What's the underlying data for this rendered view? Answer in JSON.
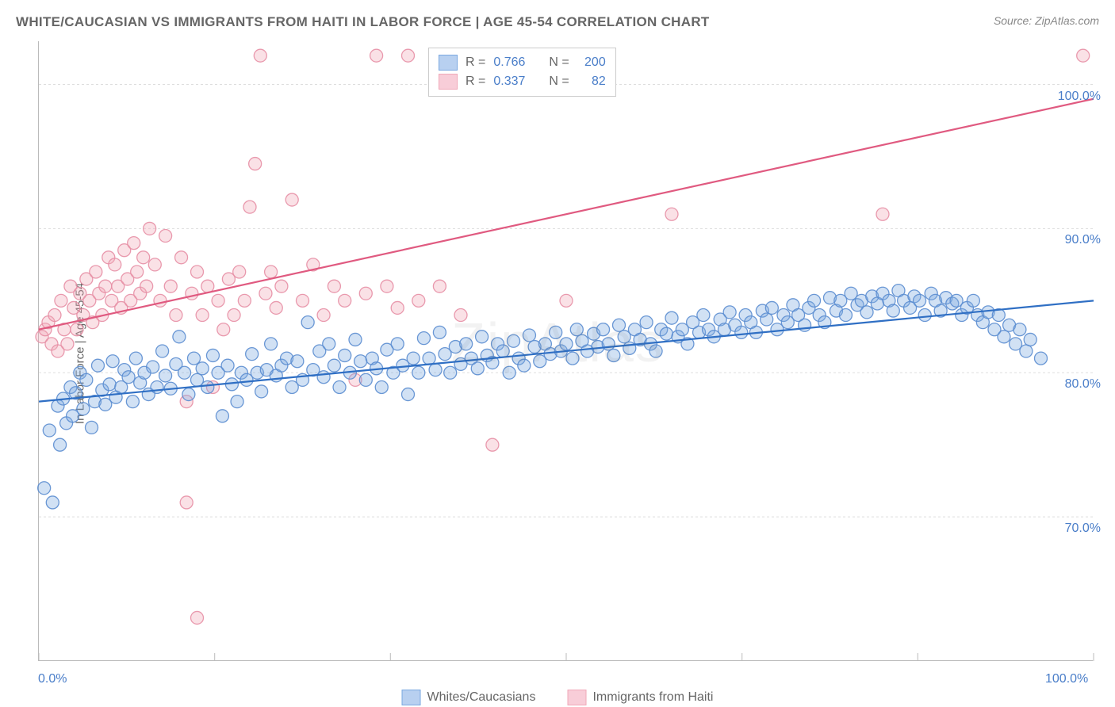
{
  "title": "WHITE/CAUCASIAN VS IMMIGRANTS FROM HAITI IN LABOR FORCE | AGE 45-54 CORRELATION CHART",
  "source": "Source: ZipAtlas.com",
  "watermark": "ZipAtlas",
  "ylabel": "In Labor Force | Age 45-54",
  "chart": {
    "type": "scatter",
    "background_color": "#ffffff",
    "grid_color": "#dddddd",
    "axis_color": "#bbbbbb",
    "text_color": "#666666",
    "value_color": "#4a7ec9",
    "xlim": [
      0,
      100
    ],
    "ylim": [
      60,
      103
    ],
    "xtick_positions": [
      0,
      16.67,
      33.33,
      50,
      66.67,
      83.33,
      100
    ],
    "xtick_labels_shown": {
      "0": "0.0%",
      "100": "100.0%"
    },
    "ytick_positions": [
      70,
      80,
      90,
      100
    ],
    "ytick_labels": [
      "70.0%",
      "80.0%",
      "90.0%",
      "100.0%"
    ],
    "marker_radius": 8,
    "marker_fill_opacity": 0.35,
    "marker_stroke_opacity": 0.9,
    "series": [
      {
        "name": "Whites/Caucasians",
        "color": "#7aa8e0",
        "stroke": "#5b8dd0",
        "line_color": "#2f6fc4",
        "R": "0.766",
        "N": "200",
        "trend": {
          "x1": 0,
          "y1": 78.0,
          "x2": 100,
          "y2": 85.0
        },
        "points": [
          [
            0.5,
            72.0
          ],
          [
            1.0,
            76.0
          ],
          [
            1.3,
            71.0
          ],
          [
            1.8,
            77.7
          ],
          [
            2.0,
            75.0
          ],
          [
            2.3,
            78.2
          ],
          [
            2.6,
            76.5
          ],
          [
            3.0,
            79.0
          ],
          [
            3.2,
            77.0
          ],
          [
            3.5,
            78.6
          ],
          [
            3.9,
            80.0
          ],
          [
            4.2,
            77.5
          ],
          [
            4.5,
            79.5
          ],
          [
            5.0,
            76.2
          ],
          [
            5.3,
            78.0
          ],
          [
            5.6,
            80.5
          ],
          [
            6.0,
            78.8
          ],
          [
            6.3,
            77.8
          ],
          [
            6.7,
            79.2
          ],
          [
            7.0,
            80.8
          ],
          [
            7.3,
            78.3
          ],
          [
            7.8,
            79.0
          ],
          [
            8.1,
            80.2
          ],
          [
            8.5,
            79.7
          ],
          [
            8.9,
            78.0
          ],
          [
            9.2,
            81.0
          ],
          [
            9.6,
            79.3
          ],
          [
            10.0,
            80.0
          ],
          [
            10.4,
            78.5
          ],
          [
            10.8,
            80.4
          ],
          [
            11.2,
            79.0
          ],
          [
            11.7,
            81.5
          ],
          [
            12.0,
            79.8
          ],
          [
            12.5,
            78.9
          ],
          [
            13.0,
            80.6
          ],
          [
            13.3,
            82.5
          ],
          [
            13.8,
            80.0
          ],
          [
            14.2,
            78.5
          ],
          [
            14.7,
            81.0
          ],
          [
            15.0,
            79.5
          ],
          [
            15.5,
            80.3
          ],
          [
            16.0,
            79.0
          ],
          [
            16.5,
            81.2
          ],
          [
            17.0,
            80.0
          ],
          [
            17.4,
            77.0
          ],
          [
            17.9,
            80.5
          ],
          [
            18.3,
            79.2
          ],
          [
            18.8,
            78.0
          ],
          [
            19.2,
            80.0
          ],
          [
            19.7,
            79.5
          ],
          [
            20.2,
            81.3
          ],
          [
            20.7,
            80.0
          ],
          [
            21.1,
            78.7
          ],
          [
            21.6,
            80.2
          ],
          [
            22.0,
            82.0
          ],
          [
            22.5,
            79.8
          ],
          [
            23.0,
            80.5
          ],
          [
            23.5,
            81.0
          ],
          [
            24.0,
            79.0
          ],
          [
            24.5,
            80.8
          ],
          [
            25.0,
            79.5
          ],
          [
            25.5,
            83.5
          ],
          [
            26.0,
            80.2
          ],
          [
            26.6,
            81.5
          ],
          [
            27.0,
            79.7
          ],
          [
            27.5,
            82.0
          ],
          [
            28.0,
            80.5
          ],
          [
            28.5,
            79.0
          ],
          [
            29.0,
            81.2
          ],
          [
            29.5,
            80.0
          ],
          [
            30.0,
            82.3
          ],
          [
            30.5,
            80.8
          ],
          [
            31.0,
            79.5
          ],
          [
            31.6,
            81.0
          ],
          [
            32.0,
            80.3
          ],
          [
            32.5,
            79.0
          ],
          [
            33.0,
            81.6
          ],
          [
            33.6,
            80.0
          ],
          [
            34.0,
            82.0
          ],
          [
            34.5,
            80.5
          ],
          [
            35.0,
            78.5
          ],
          [
            35.5,
            81.0
          ],
          [
            36.0,
            80.0
          ],
          [
            36.5,
            82.4
          ],
          [
            37.0,
            81.0
          ],
          [
            37.6,
            80.2
          ],
          [
            38.0,
            82.8
          ],
          [
            38.5,
            81.3
          ],
          [
            39.0,
            80.0
          ],
          [
            39.5,
            81.8
          ],
          [
            40.0,
            80.6
          ],
          [
            40.5,
            82.0
          ],
          [
            41.0,
            81.0
          ],
          [
            41.6,
            80.3
          ],
          [
            42.0,
            82.5
          ],
          [
            42.5,
            81.2
          ],
          [
            43.0,
            80.7
          ],
          [
            43.5,
            82.0
          ],
          [
            44.0,
            81.5
          ],
          [
            44.6,
            80.0
          ],
          [
            45.0,
            82.2
          ],
          [
            45.5,
            81.0
          ],
          [
            46.0,
            80.5
          ],
          [
            46.5,
            82.6
          ],
          [
            47.0,
            81.8
          ],
          [
            47.5,
            80.8
          ],
          [
            48.0,
            82.0
          ],
          [
            48.5,
            81.3
          ],
          [
            49.0,
            82.8
          ],
          [
            49.5,
            81.5
          ],
          [
            50.0,
            82.0
          ],
          [
            50.6,
            81.0
          ],
          [
            51.0,
            83.0
          ],
          [
            51.5,
            82.2
          ],
          [
            52.0,
            81.5
          ],
          [
            52.6,
            82.7
          ],
          [
            53.0,
            81.8
          ],
          [
            53.5,
            83.0
          ],
          [
            54.0,
            82.0
          ],
          [
            54.5,
            81.2
          ],
          [
            55.0,
            83.3
          ],
          [
            55.5,
            82.5
          ],
          [
            56.0,
            81.7
          ],
          [
            56.5,
            83.0
          ],
          [
            57.0,
            82.3
          ],
          [
            57.6,
            83.5
          ],
          [
            58.0,
            82.0
          ],
          [
            58.5,
            81.5
          ],
          [
            59.0,
            83.0
          ],
          [
            59.5,
            82.7
          ],
          [
            60.0,
            83.8
          ],
          [
            60.6,
            82.5
          ],
          [
            61.0,
            83.0
          ],
          [
            61.5,
            82.0
          ],
          [
            62.0,
            83.5
          ],
          [
            62.6,
            82.8
          ],
          [
            63.0,
            84.0
          ],
          [
            63.5,
            83.0
          ],
          [
            64.0,
            82.5
          ],
          [
            64.6,
            83.7
          ],
          [
            65.0,
            83.0
          ],
          [
            65.5,
            84.2
          ],
          [
            66.0,
            83.3
          ],
          [
            66.6,
            82.8
          ],
          [
            67.0,
            84.0
          ],
          [
            67.5,
            83.5
          ],
          [
            68.0,
            82.8
          ],
          [
            68.6,
            84.3
          ],
          [
            69.0,
            83.7
          ],
          [
            69.5,
            84.5
          ],
          [
            70.0,
            83.0
          ],
          [
            70.6,
            84.0
          ],
          [
            71.0,
            83.5
          ],
          [
            71.5,
            84.7
          ],
          [
            72.0,
            84.0
          ],
          [
            72.6,
            83.3
          ],
          [
            73.0,
            84.5
          ],
          [
            73.5,
            85.0
          ],
          [
            74.0,
            84.0
          ],
          [
            74.5,
            83.5
          ],
          [
            75.0,
            85.2
          ],
          [
            75.6,
            84.3
          ],
          [
            76.0,
            85.0
          ],
          [
            76.5,
            84.0
          ],
          [
            77.0,
            85.5
          ],
          [
            77.6,
            84.7
          ],
          [
            78.0,
            85.0
          ],
          [
            78.5,
            84.2
          ],
          [
            79.0,
            85.3
          ],
          [
            79.5,
            84.8
          ],
          [
            80.0,
            85.5
          ],
          [
            80.6,
            85.0
          ],
          [
            81.0,
            84.3
          ],
          [
            81.5,
            85.7
          ],
          [
            82.0,
            85.0
          ],
          [
            82.6,
            84.5
          ],
          [
            83.0,
            85.3
          ],
          [
            83.5,
            85.0
          ],
          [
            84.0,
            84.0
          ],
          [
            84.6,
            85.5
          ],
          [
            85.0,
            85.0
          ],
          [
            85.5,
            84.3
          ],
          [
            86.0,
            85.2
          ],
          [
            86.6,
            84.8
          ],
          [
            87.0,
            85.0
          ],
          [
            87.5,
            84.0
          ],
          [
            88.0,
            84.5
          ],
          [
            88.6,
            85.0
          ],
          [
            89.0,
            84.0
          ],
          [
            89.5,
            83.5
          ],
          [
            90.0,
            84.2
          ],
          [
            90.6,
            83.0
          ],
          [
            91.0,
            84.0
          ],
          [
            91.5,
            82.5
          ],
          [
            92.0,
            83.3
          ],
          [
            92.6,
            82.0
          ],
          [
            93.0,
            83.0
          ],
          [
            93.6,
            81.5
          ],
          [
            94.0,
            82.3
          ],
          [
            95.0,
            81.0
          ]
        ]
      },
      {
        "name": "Immigrants from Haiti",
        "color": "#f0a8b8",
        "stroke": "#e78fa5",
        "line_color": "#e05a80",
        "R": "0.337",
        "N": "82",
        "trend": {
          "x1": 0,
          "y1": 83.0,
          "x2": 100,
          "y2": 99.0
        },
        "points": [
          [
            0.3,
            82.5
          ],
          [
            0.6,
            83.0
          ],
          [
            0.9,
            83.5
          ],
          [
            1.2,
            82.0
          ],
          [
            1.5,
            84.0
          ],
          [
            1.8,
            81.5
          ],
          [
            2.1,
            85.0
          ],
          [
            2.4,
            83.0
          ],
          [
            2.7,
            82.0
          ],
          [
            3.0,
            86.0
          ],
          [
            3.3,
            84.5
          ],
          [
            3.6,
            83.0
          ],
          [
            3.9,
            85.5
          ],
          [
            4.2,
            84.0
          ],
          [
            4.5,
            86.5
          ],
          [
            4.8,
            85.0
          ],
          [
            5.1,
            83.5
          ],
          [
            5.4,
            87.0
          ],
          [
            5.7,
            85.5
          ],
          [
            6.0,
            84.0
          ],
          [
            6.3,
            86.0
          ],
          [
            6.6,
            88.0
          ],
          [
            6.9,
            85.0
          ],
          [
            7.2,
            87.5
          ],
          [
            7.5,
            86.0
          ],
          [
            7.8,
            84.5
          ],
          [
            8.1,
            88.5
          ],
          [
            8.4,
            86.5
          ],
          [
            8.7,
            85.0
          ],
          [
            9.0,
            89.0
          ],
          [
            9.3,
            87.0
          ],
          [
            9.6,
            85.5
          ],
          [
            9.9,
            88.0
          ],
          [
            10.2,
            86.0
          ],
          [
            10.5,
            90.0
          ],
          [
            11.0,
            87.5
          ],
          [
            11.5,
            85.0
          ],
          [
            12.0,
            89.5
          ],
          [
            12.5,
            86.0
          ],
          [
            13.0,
            84.0
          ],
          [
            13.5,
            88.0
          ],
          [
            14.0,
            78.0
          ],
          [
            14.0,
            71.0
          ],
          [
            14.5,
            85.5
          ],
          [
            15.0,
            87.0
          ],
          [
            15.5,
            84.0
          ],
          [
            16.0,
            86.0
          ],
          [
            16.5,
            79.0
          ],
          [
            17.0,
            85.0
          ],
          [
            17.5,
            83.0
          ],
          [
            18.0,
            86.5
          ],
          [
            18.5,
            84.0
          ],
          [
            19.0,
            87.0
          ],
          [
            19.5,
            85.0
          ],
          [
            20.0,
            91.5
          ],
          [
            20.5,
            94.5
          ],
          [
            21.0,
            102.0
          ],
          [
            21.5,
            85.5
          ],
          [
            22.0,
            87.0
          ],
          [
            22.5,
            84.5
          ],
          [
            23.0,
            86.0
          ],
          [
            24.0,
            92.0
          ],
          [
            25.0,
            85.0
          ],
          [
            26.0,
            87.5
          ],
          [
            27.0,
            84.0
          ],
          [
            28.0,
            86.0
          ],
          [
            29.0,
            85.0
          ],
          [
            30.0,
            79.5
          ],
          [
            31.0,
            85.5
          ],
          [
            32.0,
            102.0
          ],
          [
            33.0,
            86.0
          ],
          [
            34.0,
            84.5
          ],
          [
            35.0,
            102.0
          ],
          [
            36.0,
            85.0
          ],
          [
            38.0,
            86.0
          ],
          [
            40.0,
            84.0
          ],
          [
            43.0,
            75.0
          ],
          [
            50.0,
            85.0
          ],
          [
            60.0,
            91.0
          ],
          [
            80.0,
            91.0
          ],
          [
            99.0,
            102.0
          ],
          [
            15.0,
            63.0
          ]
        ]
      }
    ]
  },
  "stats_box": {
    "rows": [
      {
        "swatch_fill": "#b8d0f0",
        "swatch_stroke": "#7aa8e0",
        "R_label": "R =",
        "R": "0.766",
        "N_label": "N =",
        "N": "200"
      },
      {
        "swatch_fill": "#f8cdd8",
        "swatch_stroke": "#f0a8b8",
        "R_label": "R =",
        "R": "0.337",
        "N_label": "N =",
        "N": "82"
      }
    ]
  },
  "bottom_legend": [
    {
      "label": "Whites/Caucasians",
      "fill": "#b8d0f0",
      "stroke": "#7aa8e0"
    },
    {
      "label": "Immigrants from Haiti",
      "fill": "#f8cdd8",
      "stroke": "#f0a8b8"
    }
  ]
}
